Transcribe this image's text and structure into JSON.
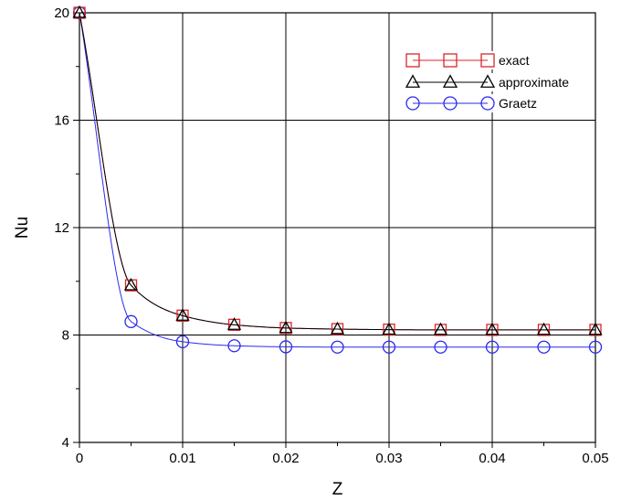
{
  "chart_data": {
    "type": "line",
    "xlabel": "Z",
    "ylabel": "Nu",
    "xlim": [
      0,
      0.05
    ],
    "ylim": [
      4,
      20
    ],
    "grid": true,
    "legend_position": "top-right",
    "x_ticks": [
      0,
      0.01,
      0.02,
      0.03,
      0.04,
      0.05
    ],
    "x_tick_labels": [
      "0",
      "0.01",
      "0.02",
      "0.03",
      "0.04",
      "0.05"
    ],
    "y_ticks": [
      4,
      8,
      12,
      16,
      20
    ],
    "y_tick_labels": [
      "4",
      "8",
      "12",
      "16",
      "20"
    ],
    "x": [
      0,
      0.005,
      0.01,
      0.015,
      0.02,
      0.025,
      0.03,
      0.035,
      0.04,
      0.045,
      0.05
    ],
    "series": [
      {
        "name": "exact",
        "color": "#d9262b",
        "marker": "square",
        "values": [
          20,
          9.85,
          8.72,
          8.38,
          8.26,
          8.22,
          8.2,
          8.19,
          8.19,
          8.19,
          8.19
        ]
      },
      {
        "name": "approximate",
        "color": "#000000",
        "marker": "triangle",
        "values": [
          20,
          9.85,
          8.72,
          8.38,
          8.26,
          8.22,
          8.2,
          8.19,
          8.19,
          8.19,
          8.19
        ]
      },
      {
        "name": "Graetz",
        "color": "#2a2aee",
        "marker": "circle",
        "values": [
          20,
          8.5,
          7.75,
          7.6,
          7.56,
          7.55,
          7.55,
          7.55,
          7.55,
          7.55,
          7.55
        ]
      }
    ]
  }
}
